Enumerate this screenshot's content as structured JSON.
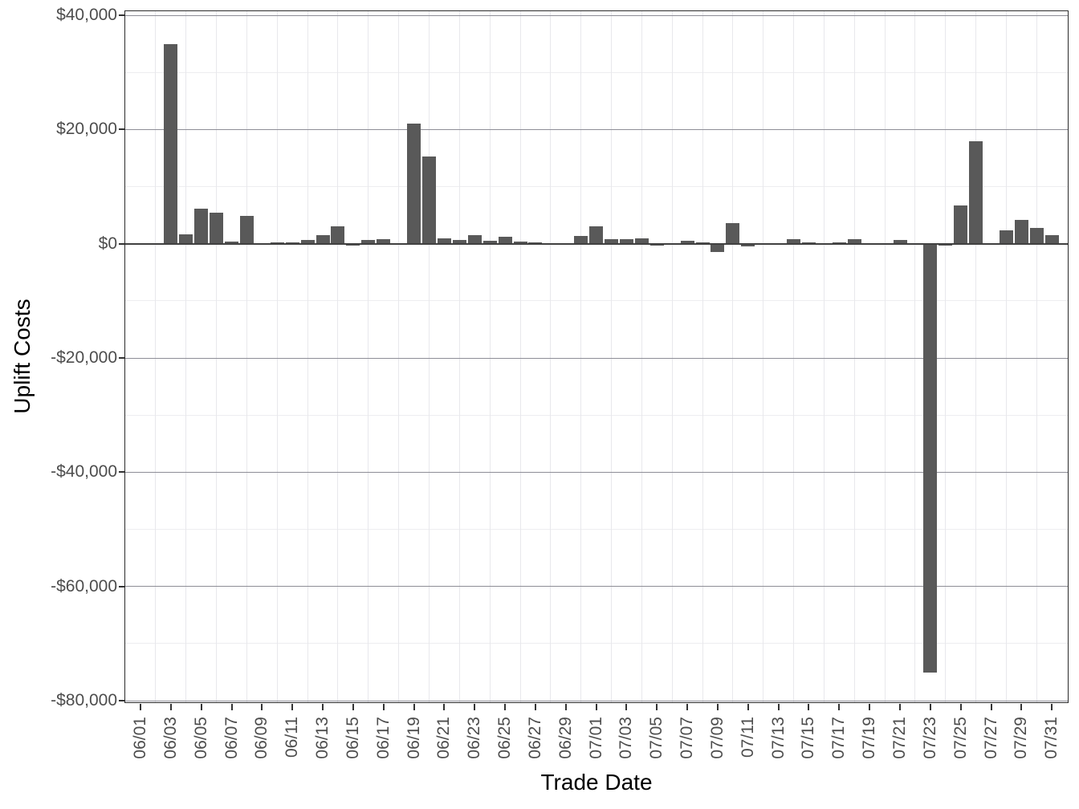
{
  "chart_data": {
    "type": "bar",
    "title": "",
    "xlabel": "Trade Date",
    "ylabel": "Uplift Costs",
    "bar_color": "#595959",
    "legend_position": "none",
    "grid": "major and minor, light gray; darker major horizontal lines; zero reference line",
    "ylim": [
      -80400,
      40850
    ],
    "y_major_ticks": {
      "values": [
        40000,
        20000,
        0,
        -20000,
        -40000,
        -60000,
        -80000
      ],
      "labels": [
        "$40,000",
        "$20,000",
        "$0",
        "-$20,000",
        "-$40,000",
        "-$60,000",
        "-$80,000"
      ]
    },
    "y_minor_ticks": [
      30000,
      10000,
      -10000,
      -30000,
      -50000,
      -70000
    ],
    "x_tick_labels": [
      "06/01",
      "06/03",
      "06/05",
      "06/07",
      "06/09",
      "06/11",
      "06/13",
      "06/15",
      "06/17",
      "06/19",
      "06/21",
      "06/23",
      "06/25",
      "06/27",
      "06/29",
      "07/01",
      "07/03",
      "07/05",
      "07/07",
      "07/09",
      "07/11",
      "07/13",
      "07/15",
      "07/17",
      "07/19",
      "07/21",
      "07/23",
      "07/25",
      "07/27",
      "07/29",
      "07/31"
    ],
    "categories": [
      "06/01",
      "06/02",
      "06/03",
      "06/04",
      "06/05",
      "06/06",
      "06/07",
      "06/08",
      "06/09",
      "06/10",
      "06/11",
      "06/12",
      "06/13",
      "06/14",
      "06/15",
      "06/16",
      "06/17",
      "06/18",
      "06/19",
      "06/20",
      "06/21",
      "06/22",
      "06/23",
      "06/24",
      "06/25",
      "06/26",
      "06/27",
      "06/28",
      "06/29",
      "06/30",
      "07/01",
      "07/02",
      "07/03",
      "07/04",
      "07/05",
      "07/06",
      "07/07",
      "07/08",
      "07/09",
      "07/10",
      "07/11",
      "07/12",
      "07/13",
      "07/14",
      "07/15",
      "07/16",
      "07/17",
      "07/18",
      "07/19",
      "07/20",
      "07/21",
      "07/22",
      "07/23",
      "07/24",
      "07/25",
      "07/26",
      "07/27",
      "07/28",
      "07/29",
      "07/30",
      "07/31"
    ],
    "values": [
      0,
      0,
      35000,
      1600,
      6100,
      5400,
      400,
      4900,
      50,
      250,
      300,
      600,
      1550,
      3000,
      -300,
      700,
      800,
      0,
      21000,
      15300,
      900,
      650,
      1550,
      550,
      1200,
      450,
      250,
      50,
      100,
      1300,
      3100,
      800,
      850,
      900,
      -300,
      50,
      500,
      200,
      -1500,
      3600,
      -450,
      0,
      0,
      800,
      300,
      50,
      300,
      850,
      100,
      0,
      700,
      0,
      -75000,
      -350,
      6700,
      18000,
      0,
      2400,
      4200,
      2800,
      1500
    ]
  }
}
